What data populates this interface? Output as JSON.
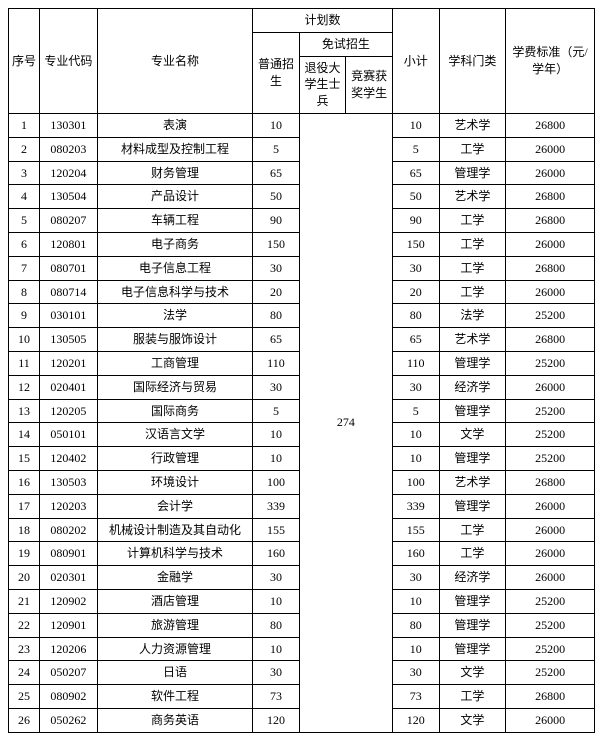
{
  "header": {
    "seq": "序号",
    "code": "专业代码",
    "name": "专业名称",
    "plan": "计划数",
    "putong": "普通招生",
    "mianshi": "免试招生",
    "tuiyi": "退役大学生士兵",
    "jingsai": "竞赛获奖学生",
    "subtotal": "小计",
    "discipline": "学科门类",
    "fee": "学费标准（元/学年）"
  },
  "merged_mianshi_value": "274",
  "rows": [
    {
      "seq": "1",
      "code": "130301",
      "name": "表演",
      "putong": "10",
      "sub": "10",
      "disc": "艺术学",
      "fee": "26800"
    },
    {
      "seq": "2",
      "code": "080203",
      "name": "材料成型及控制工程",
      "putong": "5",
      "sub": "5",
      "disc": "工学",
      "fee": "26000"
    },
    {
      "seq": "3",
      "code": "120204",
      "name": "财务管理",
      "putong": "65",
      "sub": "65",
      "disc": "管理学",
      "fee": "26000"
    },
    {
      "seq": "4",
      "code": "130504",
      "name": "产品设计",
      "putong": "50",
      "sub": "50",
      "disc": "艺术学",
      "fee": "26800"
    },
    {
      "seq": "5",
      "code": "080207",
      "name": "车辆工程",
      "putong": "90",
      "sub": "90",
      "disc": "工学",
      "fee": "26800"
    },
    {
      "seq": "6",
      "code": "120801",
      "name": "电子商务",
      "putong": "150",
      "sub": "150",
      "disc": "工学",
      "fee": "26000"
    },
    {
      "seq": "7",
      "code": "080701",
      "name": "电子信息工程",
      "putong": "30",
      "sub": "30",
      "disc": "工学",
      "fee": "26800"
    },
    {
      "seq": "8",
      "code": "080714",
      "name": "电子信息科学与技术",
      "putong": "20",
      "sub": "20",
      "disc": "工学",
      "fee": "26000"
    },
    {
      "seq": "9",
      "code": "030101",
      "name": "法学",
      "putong": "80",
      "sub": "80",
      "disc": "法学",
      "fee": "25200"
    },
    {
      "seq": "10",
      "code": "130505",
      "name": "服装与服饰设计",
      "putong": "65",
      "sub": "65",
      "disc": "艺术学",
      "fee": "26800"
    },
    {
      "seq": "11",
      "code": "120201",
      "name": "工商管理",
      "putong": "110",
      "sub": "110",
      "disc": "管理学",
      "fee": "25200"
    },
    {
      "seq": "12",
      "code": "020401",
      "name": "国际经济与贸易",
      "putong": "30",
      "sub": "30",
      "disc": "经济学",
      "fee": "26000"
    },
    {
      "seq": "13",
      "code": "120205",
      "name": "国际商务",
      "putong": "5",
      "sub": "5",
      "disc": "管理学",
      "fee": "25200"
    },
    {
      "seq": "14",
      "code": "050101",
      "name": "汉语言文学",
      "putong": "10",
      "sub": "10",
      "disc": "文学",
      "fee": "25200"
    },
    {
      "seq": "15",
      "code": "120402",
      "name": "行政管理",
      "putong": "10",
      "sub": "10",
      "disc": "管理学",
      "fee": "25200"
    },
    {
      "seq": "16",
      "code": "130503",
      "name": "环境设计",
      "putong": "100",
      "sub": "100",
      "disc": "艺术学",
      "fee": "26800"
    },
    {
      "seq": "17",
      "code": "120203",
      "name": "会计学",
      "putong": "339",
      "sub": "339",
      "disc": "管理学",
      "fee": "26000"
    },
    {
      "seq": "18",
      "code": "080202",
      "name": "机械设计制造及其自动化",
      "putong": "155",
      "sub": "155",
      "disc": "工学",
      "fee": "26000"
    },
    {
      "seq": "19",
      "code": "080901",
      "name": "计算机科学与技术",
      "putong": "160",
      "sub": "160",
      "disc": "工学",
      "fee": "26000"
    },
    {
      "seq": "20",
      "code": "020301",
      "name": "金融学",
      "putong": "30",
      "sub": "30",
      "disc": "经济学",
      "fee": "26000"
    },
    {
      "seq": "21",
      "code": "120902",
      "name": "酒店管理",
      "putong": "10",
      "sub": "10",
      "disc": "管理学",
      "fee": "25200"
    },
    {
      "seq": "22",
      "code": "120901",
      "name": "旅游管理",
      "putong": "80",
      "sub": "80",
      "disc": "管理学",
      "fee": "25200"
    },
    {
      "seq": "23",
      "code": "120206",
      "name": "人力资源管理",
      "putong": "10",
      "sub": "10",
      "disc": "管理学",
      "fee": "25200"
    },
    {
      "seq": "24",
      "code": "050207",
      "name": "日语",
      "putong": "30",
      "sub": "30",
      "disc": "文学",
      "fee": "25200"
    },
    {
      "seq": "25",
      "code": "080902",
      "name": "软件工程",
      "putong": "73",
      "sub": "73",
      "disc": "工学",
      "fee": "26800"
    },
    {
      "seq": "26",
      "code": "050262",
      "name": "商务英语",
      "putong": "120",
      "sub": "120",
      "disc": "文学",
      "fee": "26000"
    }
  ]
}
